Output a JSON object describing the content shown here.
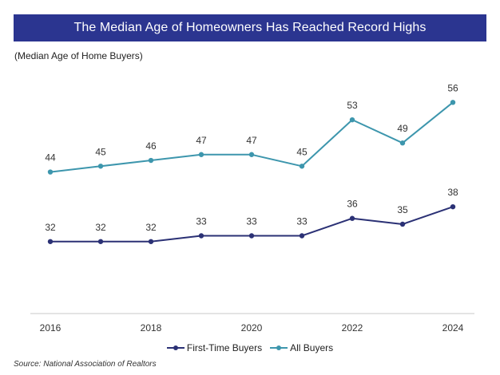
{
  "chart_data": {
    "type": "line",
    "title": "The Median Age of Homeowners Has Reached Record Highs",
    "subtitle": "(Median Age of Home Buyers)",
    "x": [
      2016,
      2017,
      2018,
      2019,
      2020,
      2021,
      2022,
      2023,
      2024
    ],
    "x_tick_labels": [
      "2016",
      "2018",
      "2020",
      "2022",
      "2024"
    ],
    "xlim": [
      2016,
      2024
    ],
    "ylim": [
      20,
      61
    ],
    "xlabel": "",
    "ylabel": "",
    "grid": false,
    "legend_position": "bottom-center",
    "series": [
      {
        "name": "First-Time Buyers",
        "color": "#2b3175",
        "values": [
          32,
          32,
          32,
          33,
          33,
          33,
          36,
          35,
          38
        ]
      },
      {
        "name": "All Buyers",
        "color": "#3d96ad",
        "values": [
          44,
          45,
          46,
          47,
          47,
          45,
          53,
          49,
          56
        ]
      }
    ]
  },
  "source": "Source: National Association of Realtors",
  "colors": {
    "title_bg": "#2b3590",
    "axis": "#c8c8c8"
  }
}
